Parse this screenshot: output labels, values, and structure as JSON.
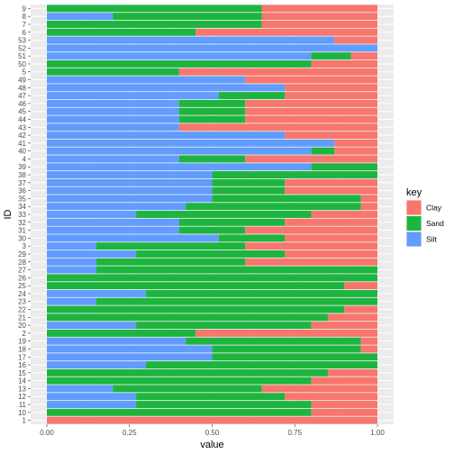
{
  "chart_data": {
    "type": "bar",
    "orientation": "horizontal",
    "stacked": true,
    "xlabel": "value",
    "ylabel": "ID",
    "xlim": [
      0,
      1
    ],
    "x_ticks": [
      "0.00",
      "0.25",
      "0.50",
      "0.75",
      "1.00"
    ],
    "x_tick_values": [
      0,
      0.25,
      0.5,
      0.75,
      1
    ],
    "grid": true,
    "legend": {
      "title": "key",
      "position": "right",
      "entries": [
        "Clay",
        "Sand",
        "Silt"
      ]
    },
    "colors": {
      "Clay": "#F8766D",
      "Sand": "#1DB53F",
      "Silt": "#619CFF",
      "panel": "#EBEBEB",
      "grid": "#FFFFFF"
    },
    "categories": [
      "9",
      "8",
      "7",
      "6",
      "53",
      "52",
      "51",
      "50",
      "5",
      "49",
      "48",
      "47",
      "46",
      "45",
      "44",
      "43",
      "42",
      "41",
      "40",
      "4",
      "39",
      "38",
      "37",
      "36",
      "35",
      "34",
      "33",
      "32",
      "31",
      "30",
      "3",
      "29",
      "28",
      "27",
      "26",
      "25",
      "24",
      "23",
      "22",
      "21",
      "20",
      "2",
      "19",
      "18",
      "17",
      "16",
      "15",
      "14",
      "13",
      "12",
      "11",
      "10",
      "1"
    ],
    "series": [
      {
        "name": "Silt",
        "values": [
          0,
          0.2,
          0,
          0,
          0.87,
          1,
          0.8,
          0,
          0,
          0.6,
          0.72,
          0.52,
          0.4,
          0.4,
          0.4,
          0.4,
          0.72,
          0.87,
          0.8,
          0.4,
          0.8,
          0.5,
          0.5,
          0.5,
          0.5,
          0.42,
          0.27,
          0.4,
          0.4,
          0.52,
          0.15,
          0.27,
          0.15,
          0.15,
          0,
          0,
          0.3,
          0.15,
          0,
          0,
          0.27,
          0,
          0.42,
          0.5,
          0.5,
          0.3,
          0,
          0,
          0.2,
          0.27,
          0.27,
          0,
          0
        ]
      },
      {
        "name": "Sand",
        "values": [
          0.65,
          0.45,
          0.65,
          0.45,
          0,
          0,
          0.12,
          0.8,
          0.4,
          0,
          0,
          0.2,
          0.2,
          0.2,
          0.2,
          0,
          0,
          0,
          0.07,
          0.2,
          0.2,
          0.5,
          0.22,
          0.22,
          0.45,
          0.53,
          0.53,
          0.32,
          0.2,
          0.2,
          0.45,
          0.45,
          0.45,
          0.85,
          1,
          0.9,
          0.7,
          0.85,
          0.9,
          0.85,
          0.53,
          0.45,
          0.53,
          0.45,
          0.5,
          0.7,
          0.85,
          0.8,
          0.45,
          0.45,
          0.53,
          0.8,
          0
        ]
      },
      {
        "name": "Clay",
        "values": [
          0.35,
          0.35,
          0.35,
          0.55,
          0.13,
          0,
          0.08,
          0.2,
          0.6,
          0.4,
          0.28,
          0.28,
          0.4,
          0.4,
          0.4,
          0.6,
          0.28,
          0.13,
          0.13,
          0.4,
          0,
          0,
          0.28,
          0.28,
          0.05,
          0.05,
          0.2,
          0.28,
          0.4,
          0.28,
          0.4,
          0.28,
          0.4,
          0,
          0,
          0.1,
          0,
          0,
          0.1,
          0.15,
          0.2,
          0.55,
          0.05,
          0.05,
          0,
          0,
          0.15,
          0.2,
          0.35,
          0.28,
          0.2,
          0.2,
          1
        ]
      }
    ]
  }
}
